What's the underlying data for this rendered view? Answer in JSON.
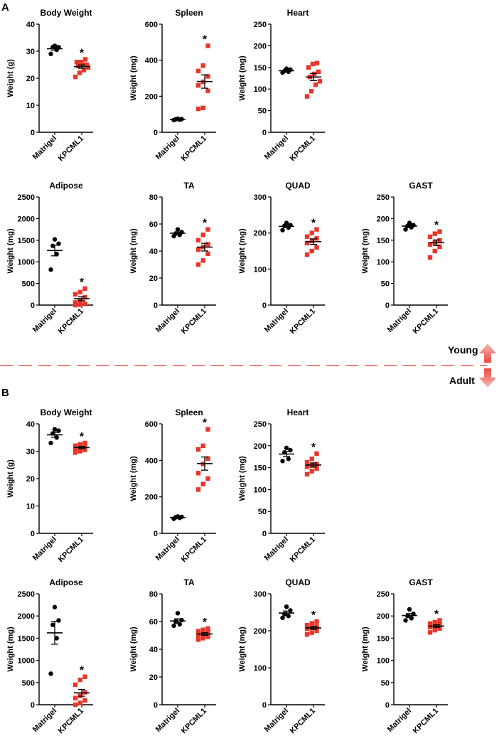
{
  "panel_labels": [
    "A",
    "B"
  ],
  "stage_labels": {
    "upper": "Young",
    "lower": "Adult"
  },
  "colors": {
    "matrigel": "#000000",
    "kpcml1": "#e8372a",
    "divider": "#e05a4a",
    "arrow": "#e8605a"
  },
  "chart_data": [
    {
      "type": "scatter",
      "panel": "A",
      "title": "Body Weight",
      "ylabel": "Weight (g)",
      "ylim": [
        0,
        40
      ],
      "yticks": [
        0,
        10,
        20,
        30,
        40
      ],
      "categories": [
        "Matrigel",
        "KPCML1"
      ],
      "significance": [
        "",
        "*"
      ],
      "series": [
        {
          "name": "Matrigel",
          "values": [
            29,
            30.5,
            31.5,
            31.5,
            32
          ]
        },
        {
          "name": "KPCML1",
          "values": [
            20.5,
            22,
            23,
            24,
            24.5,
            25,
            25,
            26,
            26,
            27
          ]
        }
      ]
    },
    {
      "type": "scatter",
      "panel": "A",
      "title": "Spleen",
      "ylabel": "Weight (mg)",
      "ylim": [
        0,
        600
      ],
      "yticks": [
        0,
        200,
        400,
        600
      ],
      "categories": [
        "Matrigel",
        "KPCML1"
      ],
      "significance": [
        "",
        "*"
      ],
      "series": [
        {
          "name": "Matrigel",
          "values": [
            68,
            72,
            75,
            70,
            73
          ]
        },
        {
          "name": "KPCML1",
          "values": [
            130,
            135,
            230,
            260,
            280,
            310,
            340,
            370,
            480
          ]
        }
      ]
    },
    {
      "type": "scatter",
      "panel": "A",
      "title": "Heart",
      "ylabel": "Weight (mg)",
      "ylim": [
        0,
        250
      ],
      "yticks": [
        0,
        50,
        100,
        150,
        200,
        250
      ],
      "categories": [
        "Matrigel",
        "KPCML1"
      ],
      "significance": [
        "",
        ""
      ],
      "series": [
        {
          "name": "Matrigel",
          "values": [
            138,
            140,
            142,
            145,
            147
          ]
        },
        {
          "name": "KPCML1",
          "values": [
            83,
            95,
            110,
            118,
            128,
            135,
            140,
            150,
            158,
            160
          ]
        }
      ]
    },
    {
      "type": "scatter",
      "panel": "A",
      "title": "Adipose",
      "ylabel": "Weight (mg)",
      "ylim": [
        0,
        2500
      ],
      "yticks": [
        0,
        500,
        1000,
        1500,
        2000,
        2500
      ],
      "categories": [
        "Matrigel",
        "KPCML1"
      ],
      "significance": [
        "",
        "*"
      ],
      "series": [
        {
          "name": "Matrigel",
          "values": [
            820,
            1180,
            1370,
            1420,
            1520
          ]
        },
        {
          "name": "KPCML1",
          "values": [
            0,
            10,
            30,
            60,
            110,
            180,
            250,
            300,
            380
          ]
        }
      ]
    },
    {
      "type": "scatter",
      "panel": "A",
      "title": "TA",
      "ylabel": "Weight (mg)",
      "ylim": [
        0,
        80
      ],
      "yticks": [
        0,
        20,
        40,
        60,
        80
      ],
      "categories": [
        "Matrigel",
        "KPCML1"
      ],
      "significance": [
        "",
        "*"
      ],
      "series": [
        {
          "name": "Matrigel",
          "values": [
            51,
            52,
            53,
            54,
            56
          ]
        },
        {
          "name": "KPCML1",
          "values": [
            30,
            33,
            38,
            41,
            43,
            45,
            48,
            52,
            56
          ]
        }
      ]
    },
    {
      "type": "scatter",
      "panel": "A",
      "title": "QUAD",
      "ylabel": "Weight (mg)",
      "ylim": [
        0,
        300
      ],
      "yticks": [
        0,
        100,
        200,
        300
      ],
      "categories": [
        "Matrigel",
        "KPCML1"
      ],
      "significance": [
        "",
        "*"
      ],
      "series": [
        {
          "name": "Matrigel",
          "values": [
            208,
            215,
            220,
            222,
            228
          ]
        },
        {
          "name": "KPCML1",
          "values": [
            140,
            150,
            160,
            172,
            178,
            185,
            190,
            200,
            210
          ]
        }
      ]
    },
    {
      "type": "scatter",
      "panel": "A",
      "title": "GAST",
      "ylabel": "Weight (mg)",
      "ylim": [
        0,
        250
      ],
      "yticks": [
        0,
        50,
        100,
        150,
        200,
        250
      ],
      "categories": [
        "Matrigel",
        "KPCML1"
      ],
      "significance": [
        "",
        "*"
      ],
      "series": [
        {
          "name": "Matrigel",
          "values": [
            175,
            180,
            183,
            185,
            190
          ]
        },
        {
          "name": "KPCML1",
          "values": [
            110,
            125,
            135,
            140,
            145,
            150,
            158,
            165,
            170
          ]
        }
      ]
    },
    {
      "type": "scatter",
      "panel": "B",
      "title": "Body Weight",
      "ylabel": "Weight (g)",
      "ylim": [
        0,
        40
      ],
      "yticks": [
        0,
        10,
        20,
        30,
        40
      ],
      "categories": [
        "Matrigel",
        "KPCML1"
      ],
      "significance": [
        "",
        "*"
      ],
      "series": [
        {
          "name": "Matrigel",
          "values": [
            33,
            35,
            36.5,
            37.5,
            38
          ]
        },
        {
          "name": "KPCML1",
          "values": [
            29.5,
            30,
            30.5,
            31,
            31.5,
            32,
            32,
            32.5,
            33
          ]
        }
      ]
    },
    {
      "type": "scatter",
      "panel": "B",
      "title": "Spleen",
      "ylabel": "Weight (mg)",
      "ylim": [
        0,
        600
      ],
      "yticks": [
        0,
        200,
        400,
        600
      ],
      "categories": [
        "Matrigel",
        "KPCML1"
      ],
      "significance": [
        "",
        "*"
      ],
      "series": [
        {
          "name": "Matrigel",
          "values": [
            80,
            85,
            88,
            90,
            92
          ]
        },
        {
          "name": "KPCML1",
          "values": [
            240,
            270,
            300,
            330,
            380,
            410,
            460,
            480,
            570
          ]
        }
      ]
    },
    {
      "type": "scatter",
      "panel": "B",
      "title": "Heart",
      "ylabel": "Weight (mg)",
      "ylim": [
        0,
        250
      ],
      "yticks": [
        0,
        50,
        100,
        150,
        200,
        250
      ],
      "categories": [
        "Matrigel",
        "KPCML1"
      ],
      "significance": [
        "",
        "*"
      ],
      "series": [
        {
          "name": "Matrigel",
          "values": [
            165,
            170,
            185,
            190,
            195
          ]
        },
        {
          "name": "KPCML1",
          "values": [
            135,
            142,
            148,
            152,
            155,
            158,
            162,
            170,
            182
          ]
        }
      ]
    },
    {
      "type": "scatter",
      "panel": "B",
      "title": "Adipose",
      "ylabel": "Weight (mg)",
      "ylim": [
        0,
        2500
      ],
      "yticks": [
        0,
        500,
        1000,
        1500,
        2000,
        2500
      ],
      "categories": [
        "Matrigel",
        "KPCML1"
      ],
      "significance": [
        "",
        "*"
      ],
      "series": [
        {
          "name": "Matrigel",
          "values": [
            700,
            1500,
            1800,
            1900,
            2200
          ]
        },
        {
          "name": "KPCML1",
          "values": [
            0,
            40,
            100,
            150,
            200,
            280,
            450,
            560,
            630
          ]
        }
      ]
    },
    {
      "type": "scatter",
      "panel": "B",
      "title": "TA",
      "ylabel": "Weight (mg)",
      "ylim": [
        0,
        80
      ],
      "yticks": [
        0,
        20,
        40,
        60,
        80
      ],
      "categories": [
        "Matrigel",
        "KPCML1"
      ],
      "significance": [
        "",
        "*"
      ],
      "series": [
        {
          "name": "Matrigel",
          "values": [
            57,
            58,
            60,
            61,
            66
          ]
        },
        {
          "name": "KPCML1",
          "values": [
            47,
            48,
            49,
            50,
            51,
            52,
            53,
            54,
            55
          ]
        }
      ]
    },
    {
      "type": "scatter",
      "panel": "B",
      "title": "QUAD",
      "ylabel": "Weight (mg)",
      "ylim": [
        0,
        300
      ],
      "yticks": [
        0,
        100,
        200,
        300
      ],
      "categories": [
        "Matrigel",
        "KPCML1"
      ],
      "significance": [
        "",
        "*"
      ],
      "series": [
        {
          "name": "Matrigel",
          "values": [
            235,
            240,
            245,
            255,
            265
          ]
        },
        {
          "name": "KPCML1",
          "values": [
            190,
            195,
            200,
            205,
            208,
            212,
            215,
            220,
            225
          ]
        }
      ]
    },
    {
      "type": "scatter",
      "panel": "B",
      "title": "GAST",
      "ylabel": "Weight (mg)",
      "ylim": [
        0,
        250
      ],
      "yticks": [
        0,
        50,
        100,
        150,
        200,
        250
      ],
      "categories": [
        "Matrigel",
        "KPCML1"
      ],
      "significance": [
        "",
        "*"
      ],
      "series": [
        {
          "name": "Matrigel",
          "values": [
            190,
            195,
            200,
            205,
            215
          ]
        },
        {
          "name": "KPCML1",
          "values": [
            163,
            168,
            172,
            175,
            178,
            180,
            183,
            186,
            190
          ]
        }
      ]
    }
  ]
}
